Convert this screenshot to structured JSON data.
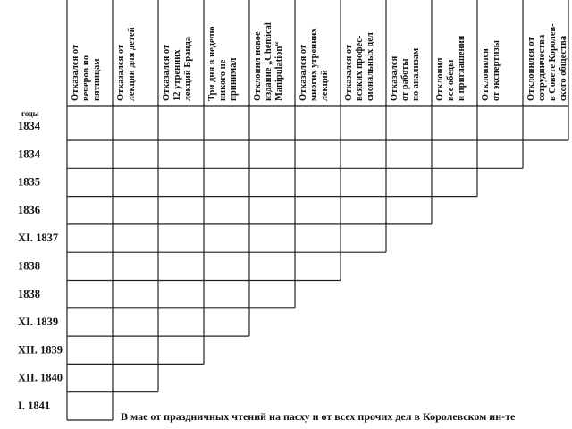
{
  "table": {
    "headers": [
      [
        "Отказался от",
        "вечеров по",
        "пятницам"
      ],
      [
        "Отказался от",
        "лекции для детей"
      ],
      [
        "Отказался от",
        "12 утренних",
        "лекций Бранда"
      ],
      [
        "Три дня в неделю",
        "никого не",
        "принимал"
      ],
      [
        "Отклонил новое",
        "издание „Chemical",
        "Manipulation“"
      ],
      [
        "Отказался от",
        "многих утренних",
        "лекций"
      ],
      [
        "Отказался от",
        "всяких профес-",
        "сиональных дел"
      ],
      [
        "Отказался",
        "от работы",
        "по анализам"
      ],
      [
        "Отклонил",
        "все обеды",
        "и приглашения"
      ],
      [
        "Отклонился",
        "от экспертизы"
      ],
      [
        "Отклонился от",
        "сотрудничества",
        "в Совете Королев-",
        "ского общества"
      ]
    ],
    "years_label": "годы",
    "rows": [
      "1834",
      "1834",
      "1835",
      "1836",
      "XI. 1837",
      "1838",
      "1838",
      "XI. 1839",
      "XII. 1839",
      "XII. 1840",
      "I. 1841"
    ],
    "footer": "В мае от праздничных чтений на пасху и от всех прочих дел в Королевском ин-те"
  }
}
